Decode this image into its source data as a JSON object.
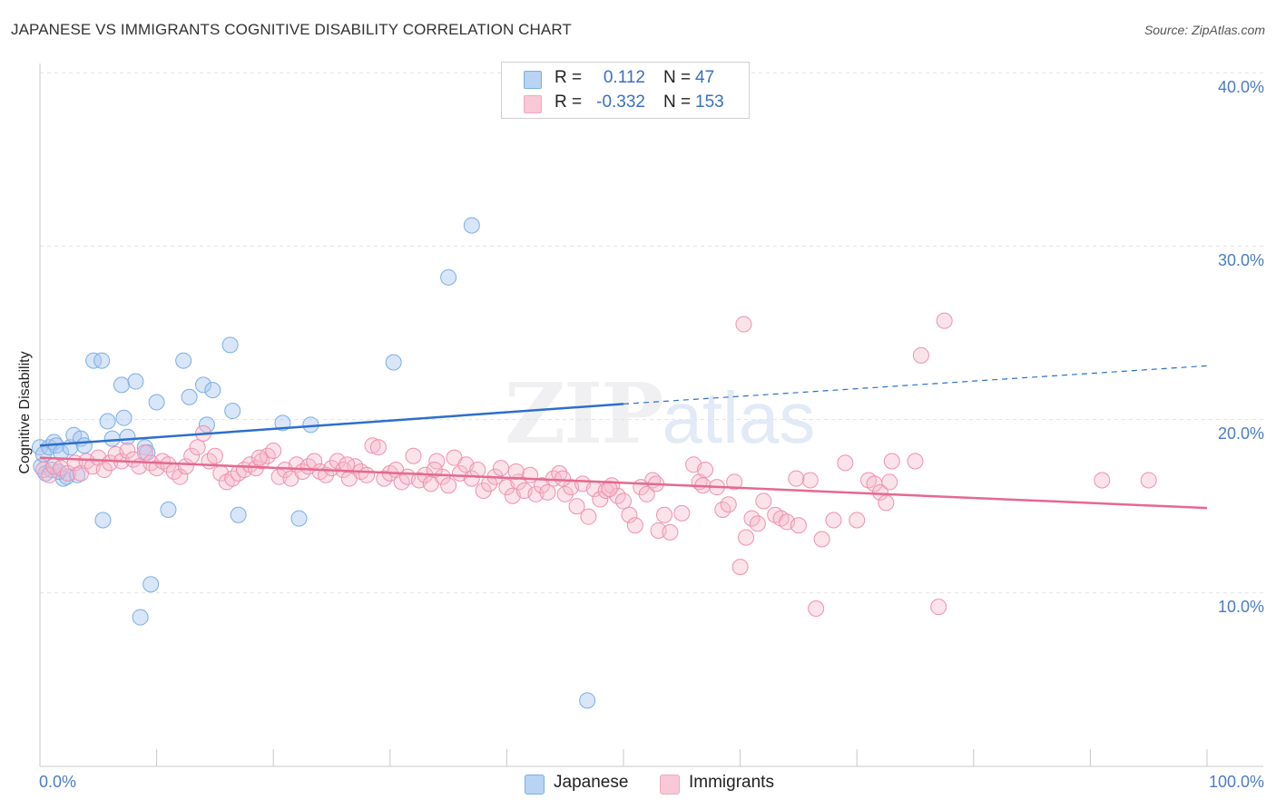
{
  "header": {
    "title": "JAPANESE VS IMMIGRANTS COGNITIVE DISABILITY CORRELATION CHART",
    "source": "Source: ZipAtlas.com"
  },
  "watermark": {
    "zip": "ZIP",
    "atlas": "atlas"
  },
  "legend": {
    "rows": [
      {
        "r_label": "R =",
        "r_value": "0.112",
        "n_label": "N =",
        "n_value": "47",
        "color": "#a8c8f0"
      },
      {
        "r_label": "R =",
        "r_value": "-0.332",
        "n_label": "N =",
        "n_value": "153",
        "color": "#f5b8cb"
      }
    ]
  },
  "bottom_legend": {
    "japanese": "Japanese",
    "immigrants": "Immigrants"
  },
  "axes": {
    "ylabel": "Cognitive Disability",
    "x_min_label": "0.0%",
    "x_max_label": "100.0%",
    "y_tick_labels": [
      "40.0%",
      "30.0%",
      "20.0%",
      "10.0%"
    ]
  },
  "chart_data": {
    "type": "scatter",
    "title": "JAPANESE VS IMMIGRANTS COGNITIVE DISABILITY CORRELATION CHART",
    "xlabel": "",
    "ylabel": "Cognitive Disability",
    "xlim": [
      0,
      100
    ],
    "ylim": [
      0,
      42
    ],
    "y_ticks": [
      10,
      20,
      30,
      40
    ],
    "grid": "horizontal dashed",
    "legend_position": "top-center",
    "series": [
      {
        "name": "Japanese",
        "color": "#7aaee8",
        "trend": {
          "x0": 0,
          "y0": 18.5,
          "x1": 50,
          "y1": 20.9,
          "dashed_to_x": 100,
          "dashed_to_y": 23.1,
          "line_color": "#2c6fcd"
        },
        "points": [
          [
            0.0,
            18.4
          ],
          [
            0.1,
            17.3
          ],
          [
            0.3,
            18.0
          ],
          [
            0.5,
            16.9
          ],
          [
            0.8,
            18.4
          ],
          [
            1.0,
            17.1
          ],
          [
            1.2,
            18.7
          ],
          [
            1.4,
            18.5
          ],
          [
            1.8,
            18.1
          ],
          [
            2.0,
            16.6
          ],
          [
            2.3,
            16.7
          ],
          [
            2.6,
            18.4
          ],
          [
            2.9,
            19.1
          ],
          [
            3.2,
            16.8
          ],
          [
            3.5,
            18.9
          ],
          [
            4.6,
            23.4
          ],
          [
            5.3,
            23.4
          ],
          [
            5.4,
            14.2
          ],
          [
            5.8,
            19.9
          ],
          [
            6.2,
            18.9
          ],
          [
            7.0,
            22.0
          ],
          [
            7.2,
            20.1
          ],
          [
            7.5,
            19.0
          ],
          [
            8.2,
            22.2
          ],
          [
            8.6,
            8.6
          ],
          [
            9.0,
            18.4
          ],
          [
            9.2,
            18.1
          ],
          [
            9.5,
            10.5
          ],
          [
            10.0,
            21.0
          ],
          [
            11.0,
            14.8
          ],
          [
            12.3,
            23.4
          ],
          [
            12.8,
            21.3
          ],
          [
            14.0,
            22.0
          ],
          [
            14.3,
            19.7
          ],
          [
            14.8,
            21.7
          ],
          [
            16.3,
            24.3
          ],
          [
            16.5,
            20.5
          ],
          [
            17.0,
            14.5
          ],
          [
            20.8,
            19.8
          ],
          [
            22.2,
            14.3
          ],
          [
            23.2,
            19.7
          ],
          [
            30.3,
            23.3
          ],
          [
            35.0,
            28.2
          ],
          [
            37.0,
            31.2
          ],
          [
            46.9,
            3.8
          ],
          [
            3.8,
            18.5
          ],
          [
            1.6,
            17.0
          ]
        ]
      },
      {
        "name": "Immigrants",
        "color": "#f4a6c0",
        "trend": {
          "x0": 0,
          "y0": 17.8,
          "x1": 100,
          "y1": 14.9,
          "line_color": "#e5698f"
        },
        "points": [
          [
            0.3,
            17.1
          ],
          [
            0.8,
            16.8
          ],
          [
            1.2,
            17.3
          ],
          [
            1.8,
            17.2
          ],
          [
            2.4,
            16.9
          ],
          [
            3.0,
            17.5
          ],
          [
            3.5,
            16.9
          ],
          [
            4.0,
            17.6
          ],
          [
            4.5,
            17.3
          ],
          [
            5.0,
            17.8
          ],
          [
            5.5,
            17.1
          ],
          [
            6.0,
            17.5
          ],
          [
            6.5,
            18.0
          ],
          [
            7.0,
            17.6
          ],
          [
            7.5,
            18.2
          ],
          [
            8.0,
            17.7
          ],
          [
            8.5,
            17.3
          ],
          [
            9.0,
            18.1
          ],
          [
            9.5,
            17.5
          ],
          [
            10.0,
            17.2
          ],
          [
            10.5,
            17.6
          ],
          [
            11.0,
            17.4
          ],
          [
            11.5,
            17.0
          ],
          [
            12.0,
            16.7
          ],
          [
            12.5,
            17.3
          ],
          [
            13.0,
            17.9
          ],
          [
            13.5,
            18.4
          ],
          [
            14.0,
            19.2
          ],
          [
            14.5,
            17.6
          ],
          [
            15.0,
            17.9
          ],
          [
            15.5,
            16.9
          ],
          [
            16.0,
            16.4
          ],
          [
            16.5,
            16.6
          ],
          [
            17.0,
            16.9
          ],
          [
            17.5,
            17.1
          ],
          [
            18.0,
            17.4
          ],
          [
            18.5,
            17.2
          ],
          [
            19.0,
            17.6
          ],
          [
            19.5,
            17.9
          ],
          [
            20.0,
            18.2
          ],
          [
            20.5,
            16.7
          ],
          [
            21.0,
            17.1
          ],
          [
            21.5,
            16.6
          ],
          [
            22.0,
            17.4
          ],
          [
            22.5,
            17.0
          ],
          [
            23.0,
            17.3
          ],
          [
            23.5,
            17.6
          ],
          [
            24.0,
            17.0
          ],
          [
            24.5,
            16.8
          ],
          [
            25.0,
            17.2
          ],
          [
            25.5,
            17.6
          ],
          [
            26.0,
            17.1
          ],
          [
            26.5,
            16.6
          ],
          [
            27.0,
            17.3
          ],
          [
            27.5,
            17.0
          ],
          [
            28.0,
            16.8
          ],
          [
            28.5,
            18.5
          ],
          [
            29.0,
            18.4
          ],
          [
            29.5,
            16.6
          ],
          [
            30.0,
            16.9
          ],
          [
            30.5,
            17.1
          ],
          [
            31.0,
            16.4
          ],
          [
            31.5,
            16.7
          ],
          [
            32.0,
            17.9
          ],
          [
            32.5,
            16.5
          ],
          [
            33.0,
            16.8
          ],
          [
            33.5,
            16.3
          ],
          [
            34.0,
            17.6
          ],
          [
            34.5,
            16.7
          ],
          [
            35.0,
            16.2
          ],
          [
            35.5,
            17.8
          ],
          [
            36.0,
            16.9
          ],
          [
            36.5,
            17.4
          ],
          [
            37.0,
            16.6
          ],
          [
            37.5,
            17.1
          ],
          [
            38.0,
            15.9
          ],
          [
            38.5,
            16.3
          ],
          [
            39.0,
            16.7
          ],
          [
            39.5,
            17.2
          ],
          [
            40.0,
            16.1
          ],
          [
            40.5,
            15.6
          ],
          [
            41.0,
            16.4
          ],
          [
            41.5,
            15.9
          ],
          [
            42.0,
            16.8
          ],
          [
            42.5,
            15.7
          ],
          [
            43.0,
            16.2
          ],
          [
            43.5,
            15.8
          ],
          [
            44.0,
            16.6
          ],
          [
            44.5,
            16.9
          ],
          [
            45.0,
            15.7
          ],
          [
            45.5,
            16.1
          ],
          [
            46.0,
            15.0
          ],
          [
            46.5,
            16.3
          ],
          [
            47.0,
            14.4
          ],
          [
            47.5,
            16.0
          ],
          [
            48.0,
            15.4
          ],
          [
            48.5,
            15.9
          ],
          [
            49.0,
            16.2
          ],
          [
            49.5,
            15.6
          ],
          [
            50.0,
            15.3
          ],
          [
            50.5,
            14.5
          ],
          [
            51.0,
            13.9
          ],
          [
            51.5,
            16.1
          ],
          [
            52.0,
            15.7
          ],
          [
            52.5,
            16.5
          ],
          [
            53.0,
            13.6
          ],
          [
            53.5,
            14.5
          ],
          [
            54.0,
            13.5
          ],
          [
            55.0,
            14.6
          ],
          [
            56.0,
            17.4
          ],
          [
            56.5,
            16.4
          ],
          [
            57.0,
            17.1
          ],
          [
            58.0,
            16.1
          ],
          [
            58.5,
            14.8
          ],
          [
            59.0,
            15.1
          ],
          [
            59.5,
            16.4
          ],
          [
            60.0,
            11.5
          ],
          [
            60.5,
            13.2
          ],
          [
            61.0,
            14.3
          ],
          [
            61.5,
            14.0
          ],
          [
            62.0,
            15.3
          ],
          [
            63.0,
            14.5
          ],
          [
            63.5,
            14.3
          ],
          [
            64.0,
            14.1
          ],
          [
            65.0,
            13.9
          ],
          [
            66.0,
            16.5
          ],
          [
            66.5,
            9.1
          ],
          [
            67.0,
            13.1
          ],
          [
            68.0,
            14.2
          ],
          [
            69.0,
            17.5
          ],
          [
            70.0,
            14.2
          ],
          [
            71.0,
            16.5
          ],
          [
            71.5,
            16.3
          ],
          [
            72.0,
            15.8
          ],
          [
            72.5,
            15.2
          ],
          [
            73.0,
            17.6
          ],
          [
            75.0,
            17.6
          ],
          [
            75.5,
            23.7
          ],
          [
            77.0,
            9.2
          ],
          [
            91.0,
            16.5
          ],
          [
            95.0,
            16.5
          ],
          [
            60.3,
            25.5
          ],
          [
            77.5,
            25.7
          ],
          [
            18.8,
            17.8
          ],
          [
            26.3,
            17.4
          ],
          [
            33.8,
            17.1
          ],
          [
            40.8,
            17.0
          ],
          [
            44.8,
            16.6
          ],
          [
            48.8,
            16.0
          ],
          [
            52.8,
            16.3
          ],
          [
            56.8,
            16.2
          ],
          [
            64.8,
            16.6
          ],
          [
            72.8,
            16.4
          ]
        ]
      }
    ]
  }
}
